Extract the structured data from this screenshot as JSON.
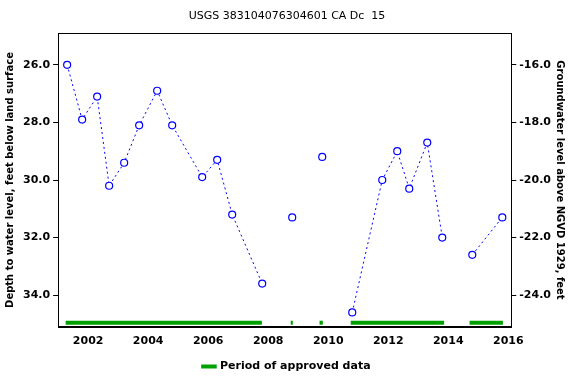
{
  "chart_data": {
    "type": "line",
    "title": "USGS 383104076304601 CA Dc  15",
    "ylabel": "Depth to water level, feet below land surface",
    "y2label": "Groundwater level above NGVD 1929, feet",
    "x": [
      2001.3,
      2001.8,
      2002.3,
      2002.7,
      2003.2,
      2003.7,
      2004.3,
      2004.8,
      2005.8,
      2006.3,
      2006.8,
      2007.8,
      2008.3,
      2008.8,
      2009.3,
      2009.8,
      2010.3,
      2010.8,
      2011.8,
      2012.3,
      2012.7,
      2013.3,
      2013.8,
      2014.3,
      2014.8,
      2015.8
    ],
    "values": [
      26.0,
      27.9,
      27.1,
      30.2,
      29.4,
      28.1,
      26.9,
      28.1,
      29.9,
      29.3,
      31.2,
      33.6,
      null,
      31.3,
      null,
      29.2,
      null,
      34.6,
      30.0,
      29.0,
      30.3,
      28.7,
      32.0,
      null,
      32.6,
      31.3
    ],
    "color": "#0000ff",
    "marker": "circle",
    "line_style": "dotted",
    "xlim": [
      2001.0,
      2016.1
    ],
    "xticks": [
      2002,
      2004,
      2006,
      2008,
      2010,
      2012,
      2014,
      2016
    ],
    "ylim": [
      35.1,
      24.9
    ],
    "yticks": [
      {
        "value": 26,
        "label": "26.0"
      },
      {
        "value": 28,
        "label": "28.0"
      },
      {
        "value": 30,
        "label": "30.0"
      },
      {
        "value": 32,
        "label": "32.0"
      },
      {
        "value": 34,
        "label": "34.0"
      }
    ],
    "y2lim": [
      -25.1,
      -14.9
    ],
    "y2ticks": [
      {
        "value": -16,
        "label": "-16.0"
      },
      {
        "value": -18,
        "label": "-18.0"
      },
      {
        "value": -20,
        "label": "-20.0"
      },
      {
        "value": -22,
        "label": "-22.0"
      },
      {
        "value": -24,
        "label": "-24.0"
      }
    ],
    "approved_periods": {
      "name": "Period of approved data",
      "color": "#00a000",
      "ranges": [
        [
          2001.25,
          2007.79
        ],
        [
          2008.75,
          2008.82
        ],
        [
          2009.71,
          2009.82
        ],
        [
          2010.75,
          2013.86
        ],
        [
          2014.71,
          2015.82
        ]
      ]
    },
    "legend": "bottom",
    "grid": false
  }
}
